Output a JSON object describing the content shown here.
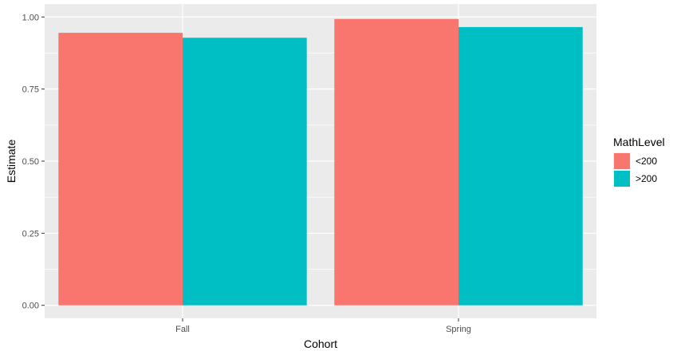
{
  "chart_data": {
    "type": "bar",
    "categories": [
      "Fall",
      "Spring"
    ],
    "series": [
      {
        "name": "<200",
        "values": [
          0.945,
          0.993
        ],
        "color": "#F8766D"
      },
      {
        "name": ">200",
        "values": [
          0.928,
          0.965
        ],
        "color": "#00BFC4"
      }
    ],
    "xlabel": "Cohort",
    "ylabel": "Estimate",
    "yticks": [
      "0.00",
      "0.25",
      "0.50",
      "0.75",
      "1.00"
    ],
    "ytick_values": [
      0,
      0.25,
      0.5,
      0.75,
      1.0
    ],
    "ylim": [
      -0.045,
      1.045
    ],
    "grid": true,
    "legend": {
      "title": "MathLevel",
      "position": "right"
    },
    "panel_color": "#EBEBEB",
    "grid_color": "#FFFFFF"
  }
}
